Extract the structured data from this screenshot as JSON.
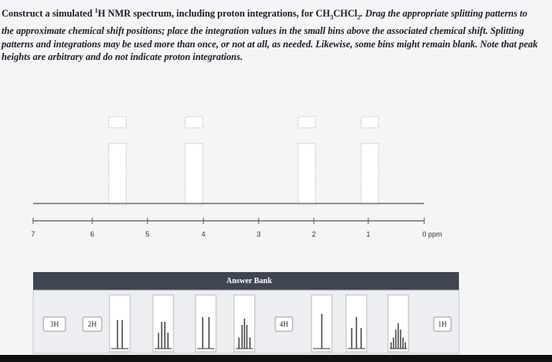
{
  "prompt": {
    "part1": "Construct a simulated ",
    "sup": "1",
    "part2": "H NMR spectrum, including proton integrations, for CH",
    "sub1": "3",
    "part3": "CHCl",
    "sub2": "2",
    "part4": ". Drag the appropriate splitting patterns to the approximate chemical shift positions; place the integration values in the small bins above the associated chemical shift. Splitting patterns and integrations may be used more than once, or not at all, as needed. Likewise, some bins might remain blank. Note that peak heights are arbitrary and do not indicate proton integrations."
  },
  "axis": {
    "labels": [
      "7",
      "6",
      "5",
      "4",
      "3",
      "2",
      "1",
      "0 ppm"
    ]
  },
  "answer_bank": {
    "title": "Answer Bank",
    "integrations": [
      "3H",
      "2H",
      "4H",
      "1H"
    ]
  }
}
